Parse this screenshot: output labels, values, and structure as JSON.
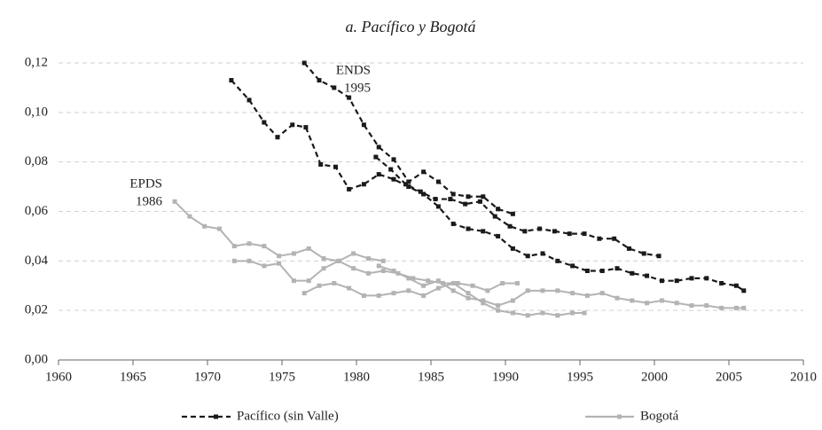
{
  "chart_data": {
    "type": "line",
    "title": "a. Pacífico y Bogotá",
    "xlim": [
      1960,
      2010
    ],
    "xticks": [
      1960,
      1965,
      1970,
      1975,
      1980,
      1985,
      1990,
      1995,
      2000,
      2005,
      2010
    ],
    "ylim": [
      0,
      0.12
    ],
    "yticks": [
      {
        "value": 0,
        "label": "0,00"
      },
      {
        "value": 0.02,
        "label": "0,02"
      },
      {
        "value": 0.04,
        "label": "0,04"
      },
      {
        "value": 0.06,
        "label": "0,06"
      },
      {
        "value": 0.08,
        "label": "0,08"
      },
      {
        "value": 0.1,
        "label": "0,10"
      },
      {
        "value": 0.12,
        "label": "0,12"
      }
    ],
    "grid": true,
    "legend": "bottom",
    "annotations": [
      {
        "lines": [
          "ENDS",
          "1995"
        ]
      },
      {
        "lines": [
          "EPDS",
          "1986"
        ]
      }
    ],
    "series": [
      {
        "name": "Pacífico (sin Valle)",
        "color": "#1a1a1a",
        "dashed": true,
        "lines": [
          {
            "x": [
              1971.6,
              1972.8,
              1973.8,
              1974.7,
              1975.7,
              1976.6,
              1977.6,
              1978.6,
              1979.5,
              1980.5,
              1981.5,
              1982.5,
              1983.5,
              1984.5,
              1985.5,
              1986.5,
              1987.5,
              1988.5,
              1989.5,
              1990.5,
              1991.5,
              1992.5,
              1993.5,
              1994.5,
              1995.5,
              1996.5,
              1997.5,
              1998.5,
              1999.5,
              2000.5,
              2001.5,
              2002.5,
              2003.5,
              2004.5,
              2005.5,
              2006
            ],
            "values": [
              0.113,
              0.105,
              0.096,
              0.09,
              0.095,
              0.094,
              0.079,
              0.078,
              0.069,
              0.071,
              0.075,
              0.073,
              0.07,
              0.067,
              0.062,
              0.055,
              0.053,
              0.052,
              0.05,
              0.045,
              0.042,
              0.043,
              0.04,
              0.038,
              0.036,
              0.036,
              0.037,
              0.035,
              0.034,
              0.032,
              0.032,
              0.033,
              0.033,
              0.031,
              0.03,
              0.028
            ]
          },
          {
            "x": [
              1976.5,
              1977.5,
              1978.5,
              1979.5,
              1980.5,
              1981.5,
              1982.5,
              1983.5,
              1984.5,
              1985.5,
              1986.5,
              1987.5,
              1988.5,
              1989.5,
              1990.5
            ],
            "values": [
              0.12,
              0.113,
              0.11,
              0.106,
              0.095,
              0.086,
              0.081,
              0.072,
              0.076,
              0.072,
              0.067,
              0.066,
              0.066,
              0.061,
              0.059
            ]
          },
          {
            "x": [
              1981.3,
              1982.3,
              1983.3,
              1984.3,
              1985.3,
              1986.3,
              1987.3,
              1988.3,
              1989.3,
              1990.3,
              1991.3,
              1992.3,
              1993.3,
              1994.3,
              1995.3,
              1996.3,
              1997.3,
              1998.3,
              1999.3,
              2000.3
            ],
            "values": [
              0.082,
              0.077,
              0.071,
              0.068,
              0.065,
              0.065,
              0.063,
              0.064,
              0.058,
              0.054,
              0.052,
              0.053,
              0.052,
              0.051,
              0.051,
              0.049,
              0.049,
              0.045,
              0.043,
              0.042
            ]
          }
        ]
      },
      {
        "name": "Bogotá",
        "color": "#b3b3b3",
        "dashed": false,
        "lines": [
          {
            "x": [
              1967.8,
              1968.8,
              1969.8,
              1970.8,
              1971.8,
              1972.8,
              1973.8,
              1974.8,
              1975.8,
              1976.8,
              1977.8,
              1978.8,
              1979.8,
              1980.8,
              1981.8,
              1982.8,
              1983.8,
              1984.8,
              1985.8,
              1986.8,
              1987.8,
              1988.8,
              1989.8,
              1990.8
            ],
            "values": [
              0.064,
              0.058,
              0.054,
              0.053,
              0.046,
              0.047,
              0.046,
              0.042,
              0.043,
              0.045,
              0.041,
              0.04,
              0.037,
              0.035,
              0.036,
              0.035,
              0.033,
              0.032,
              0.031,
              0.031,
              0.03,
              0.028,
              0.031,
              0.031
            ]
          },
          {
            "x": [
              1971.8,
              1972.8,
              1973.8,
              1974.8,
              1975.8,
              1976.8,
              1977.8,
              1978.8,
              1979.8,
              1980.8,
              1981.8
            ],
            "values": [
              0.04,
              0.04,
              0.038,
              0.039,
              0.032,
              0.032,
              0.037,
              0.04,
              0.043,
              0.041,
              0.04
            ]
          },
          {
            "x": [
              1976.5,
              1977.5,
              1978.5,
              1979.5,
              1980.5,
              1981.5,
              1982.5,
              1983.5,
              1984.5,
              1985.5,
              1986.5,
              1987.5,
              1988.5,
              1989.5,
              1990.5,
              1991.5,
              1992.5,
              1993.5,
              1994.5,
              1995.3
            ],
            "values": [
              0.027,
              0.03,
              0.031,
              0.029,
              0.026,
              0.026,
              0.027,
              0.028,
              0.026,
              0.029,
              0.031,
              0.027,
              0.023,
              0.02,
              0.019,
              0.018,
              0.019,
              0.018,
              0.019,
              0.019
            ]
          },
          {
            "x": [
              1981.5,
              1982.5,
              1983.5,
              1984.5,
              1985.5,
              1986.5,
              1987.5,
              1988.5,
              1989.5,
              1990.5,
              1991.5,
              1992.5,
              1993.5,
              1994.5,
              1995.5,
              1996.5,
              1997.5,
              1998.5,
              1999.5,
              2000.5,
              2001.5,
              2002.5,
              2003.5,
              2004.5,
              2005.5,
              2006
            ],
            "values": [
              0.038,
              0.036,
              0.033,
              0.03,
              0.032,
              0.028,
              0.025,
              0.024,
              0.022,
              0.024,
              0.028,
              0.028,
              0.028,
              0.027,
              0.026,
              0.027,
              0.025,
              0.024,
              0.023,
              0.024,
              0.023,
              0.022,
              0.022,
              0.021,
              0.021,
              0.021
            ]
          }
        ]
      }
    ]
  }
}
